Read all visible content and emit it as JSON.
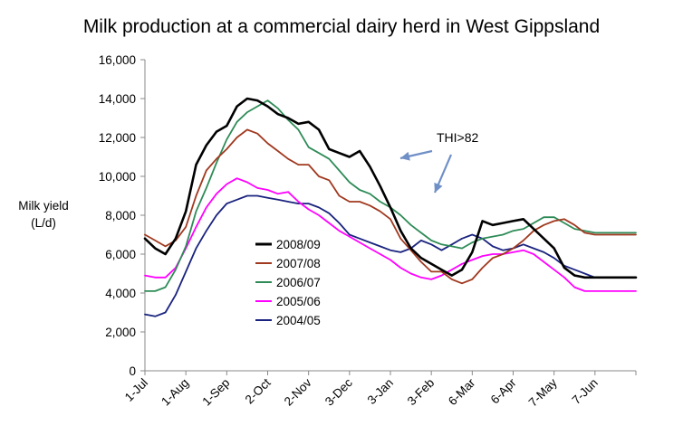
{
  "chart_data": {
    "type": "line",
    "title": "Milk production at a commercial dairy herd in West Gippsland",
    "ylabel_line1": "Milk yield",
    "ylabel_line2": "(L/d)",
    "ylim": [
      0,
      16000
    ],
    "yticks": [
      0,
      2000,
      4000,
      6000,
      8000,
      10000,
      12000,
      14000,
      16000
    ],
    "ytick_labels": [
      "0",
      "2,000",
      "4,000",
      "6,000",
      "8,000",
      "10,000",
      "12,000",
      "14,000",
      "16,000"
    ],
    "x_months": [
      "1-Jul",
      "1-Aug",
      "1-Sep",
      "2-Oct",
      "2-Nov",
      "3-Dec",
      "3-Jan",
      "3-Feb",
      "6-Mar",
      "6-Apr",
      "7-May",
      "7-Jun"
    ],
    "x_range_months": [
      0,
      12
    ],
    "grid": false,
    "legend_position": "center-left",
    "annotation": {
      "text": "THI>82"
    },
    "series": [
      {
        "name": "2008/09",
        "color": "#000000",
        "x": [
          0,
          0.25,
          0.5,
          0.75,
          1,
          1.25,
          1.5,
          1.75,
          2,
          2.25,
          2.5,
          2.75,
          3,
          3.25,
          3.5,
          3.75,
          4,
          4.25,
          4.5,
          4.75,
          5,
          5.25,
          5.5,
          5.75,
          6,
          6.25,
          6.5,
          6.75,
          7,
          7.25,
          7.5,
          7.75,
          8,
          8.25,
          8.5,
          8.75,
          9,
          9.25,
          9.5,
          9.75,
          10,
          10.25,
          10.5,
          10.75,
          11,
          11.25,
          11.5,
          11.75,
          12
        ],
        "values": [
          6800,
          6300,
          6000,
          6800,
          8200,
          10600,
          11600,
          12300,
          12600,
          13600,
          14000,
          13900,
          13600,
          13200,
          13000,
          12700,
          12800,
          12400,
          11400,
          11200,
          11000,
          11300,
          10500,
          9500,
          8400,
          7200,
          6300,
          5800,
          5500,
          5200,
          4900,
          5200,
          6100,
          7700,
          7500,
          7600,
          7700,
          7800,
          7300,
          6800,
          6300,
          5300,
          4900,
          4800,
          4800,
          4800,
          4800,
          4800,
          4800
        ]
      },
      {
        "name": "2007/08",
        "color": "#a0391f",
        "x": [
          0,
          0.25,
          0.5,
          0.75,
          1,
          1.25,
          1.5,
          1.75,
          2,
          2.25,
          2.5,
          2.75,
          3,
          3.25,
          3.5,
          3.75,
          4,
          4.25,
          4.5,
          4.75,
          5,
          5.25,
          5.5,
          5.75,
          6,
          6.25,
          6.5,
          6.75,
          7,
          7.25,
          7.5,
          7.75,
          8,
          8.25,
          8.5,
          8.75,
          9,
          9.25,
          9.5,
          9.75,
          10,
          10.25,
          10.5,
          10.75,
          11,
          11.25,
          11.5,
          11.75,
          12
        ],
        "values": [
          7000,
          6700,
          6400,
          6700,
          7400,
          9000,
          10300,
          10900,
          11400,
          12000,
          12400,
          12200,
          11700,
          11300,
          10900,
          10600,
          10600,
          10000,
          9800,
          9000,
          8700,
          8700,
          8500,
          8200,
          7800,
          6800,
          6200,
          5600,
          5100,
          5100,
          4700,
          4500,
          4700,
          5300,
          5800,
          6000,
          6300,
          6700,
          7200,
          7500,
          7700,
          7800,
          7500,
          7100,
          7000,
          7000,
          7000,
          7000,
          7000
        ]
      },
      {
        "name": "2006/07",
        "color": "#2e8b57",
        "x": [
          0,
          0.25,
          0.5,
          0.75,
          1,
          1.25,
          1.5,
          1.75,
          2,
          2.25,
          2.5,
          2.75,
          3,
          3.25,
          3.5,
          3.75,
          4,
          4.25,
          4.5,
          4.75,
          5,
          5.25,
          5.5,
          5.75,
          6,
          6.25,
          6.5,
          6.75,
          7,
          7.25,
          7.5,
          7.75,
          8,
          8.25,
          8.5,
          8.75,
          9,
          9.25,
          9.5,
          9.75,
          10,
          10.25,
          10.5,
          10.75,
          11,
          11.25,
          11.5,
          11.75,
          12
        ],
        "values": [
          4100,
          4100,
          4300,
          5200,
          6400,
          8200,
          9400,
          10700,
          11900,
          12800,
          13300,
          13600,
          13900,
          13500,
          12900,
          12400,
          11500,
          11200,
          10900,
          10300,
          9700,
          9300,
          9100,
          8700,
          8400,
          8000,
          7500,
          7100,
          6700,
          6500,
          6400,
          6300,
          6600,
          6800,
          6900,
          7000,
          7200,
          7300,
          7600,
          7900,
          7900,
          7600,
          7300,
          7200,
          7100,
          7100,
          7100,
          7100,
          7100
        ]
      },
      {
        "name": "2005/06",
        "color": "#ff00ff",
        "x": [
          0,
          0.25,
          0.5,
          0.75,
          1,
          1.25,
          1.5,
          1.75,
          2,
          2.25,
          2.5,
          2.75,
          3,
          3.25,
          3.5,
          3.75,
          4,
          4.25,
          4.5,
          4.75,
          5,
          5.25,
          5.5,
          5.75,
          6,
          6.25,
          6.5,
          6.75,
          7,
          7.25,
          7.5,
          7.75,
          8,
          8.25,
          8.5,
          8.75,
          9,
          9.25,
          9.5,
          9.75,
          10,
          10.25,
          10.5,
          10.75,
          11,
          11.25,
          11.5,
          11.75,
          12
        ],
        "values": [
          4900,
          4800,
          4800,
          5300,
          6300,
          7400,
          8400,
          9100,
          9600,
          9900,
          9700,
          9400,
          9300,
          9100,
          9200,
          8700,
          8300,
          8000,
          7600,
          7200,
          6900,
          6600,
          6300,
          6000,
          5700,
          5300,
          5000,
          4800,
          4700,
          4900,
          5200,
          5500,
          5700,
          5900,
          6000,
          6000,
          6100,
          6200,
          6000,
          5600,
          5200,
          4800,
          4300,
          4100,
          4100,
          4100,
          4100,
          4100,
          4100
        ]
      },
      {
        "name": "2004/05",
        "color": "#1a237e",
        "x": [
          0,
          0.25,
          0.5,
          0.75,
          1,
          1.25,
          1.5,
          1.75,
          2,
          2.25,
          2.5,
          2.75,
          3,
          3.25,
          3.5,
          3.75,
          4,
          4.25,
          4.5,
          4.75,
          5,
          5.25,
          5.5,
          5.75,
          6,
          6.25,
          6.5,
          6.75,
          7,
          7.25,
          7.5,
          7.75,
          8,
          8.25,
          8.5,
          8.75,
          9,
          9.25,
          9.5,
          9.75,
          10,
          10.25,
          10.5,
          10.75,
          11,
          11.25,
          11.5,
          11.75,
          12
        ],
        "values": [
          2900,
          2800,
          3000,
          3900,
          5100,
          6300,
          7200,
          8000,
          8600,
          8800,
          9000,
          9000,
          8900,
          8800,
          8700,
          8600,
          8600,
          8400,
          8100,
          7600,
          7000,
          6800,
          6600,
          6400,
          6200,
          6100,
          6300,
          6700,
          6500,
          6200,
          6500,
          6800,
          7000,
          6800,
          6400,
          6200,
          6300,
          6500,
          6300,
          6100,
          5800,
          5400,
          5200,
          5000,
          4800,
          4800,
          4800,
          4800,
          4800
        ]
      }
    ]
  }
}
